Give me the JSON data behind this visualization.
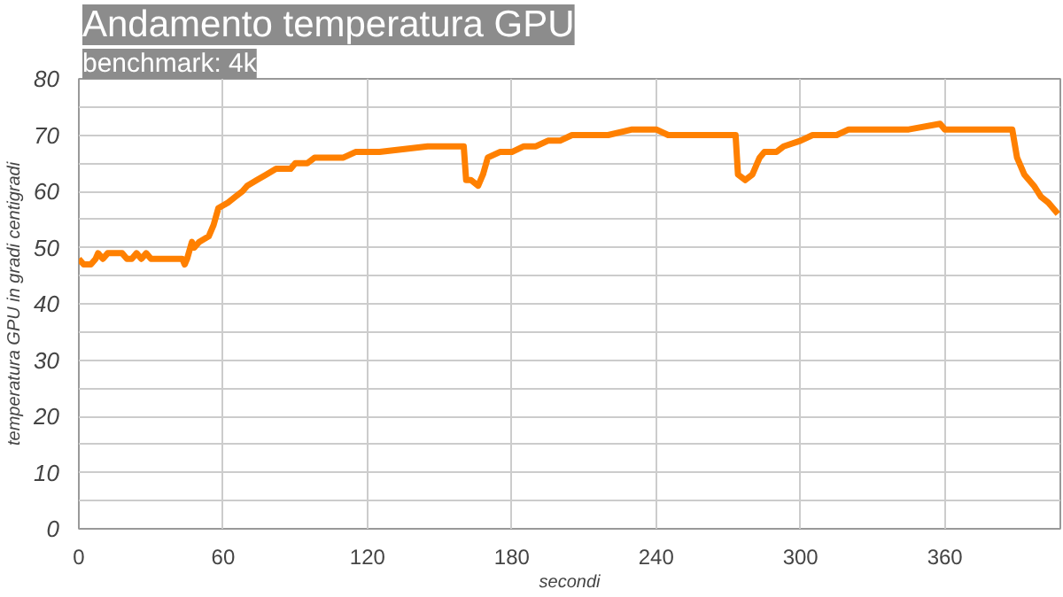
{
  "chart_data": {
    "type": "line",
    "title": "Andamento temperatura GPU",
    "subtitle": "benchmark: 4k",
    "xlabel": "secondi",
    "ylabel": "temperatura GPU in gradi centigradi",
    "xlim": [
      0,
      408
    ],
    "xticks": [
      0,
      60,
      120,
      180,
      240,
      300,
      360
    ],
    "ylim": [
      0,
      80
    ],
    "yticks": [
      0,
      {
        "value": 5,
        "label": null
      },
      10,
      {
        "value": 15,
        "label": null
      },
      20,
      {
        "value": 25,
        "label": null
      },
      30,
      {
        "value": 35,
        "label": null
      },
      40,
      {
        "value": 45,
        "label": null
      },
      50,
      {
        "value": 55,
        "label": null
      },
      60,
      {
        "value": 65,
        "label": null
      },
      70,
      {
        "value": 75,
        "label": null
      },
      80
    ],
    "grid": true,
    "marker": "none",
    "line_style": "solid",
    "series": [
      {
        "color": "#ff8000",
        "x": [
          0,
          2,
          5,
          7,
          8,
          10,
          12,
          18,
          20,
          22,
          24,
          26,
          28,
          30,
          43,
          44,
          45,
          47,
          48,
          50,
          54,
          56,
          58,
          62,
          65,
          68,
          70,
          74,
          78,
          82,
          88,
          90,
          95,
          98,
          110,
          115,
          125,
          145,
          155,
          160,
          161,
          163,
          166,
          168,
          170,
          175,
          180,
          185,
          190,
          195,
          200,
          205,
          220,
          230,
          240,
          245,
          255,
          273,
          274,
          277,
          280,
          283,
          285,
          290,
          293,
          300,
          305,
          315,
          320,
          330,
          345,
          358,
          360,
          370,
          380,
          388,
          390,
          393,
          397,
          400,
          403,
          407
        ],
        "values": [
          48,
          47,
          47,
          48,
          49,
          48,
          49,
          49,
          48,
          48,
          49,
          48,
          49,
          48,
          48,
          47,
          48,
          51,
          50,
          51,
          52,
          54,
          57,
          58,
          59,
          60,
          61,
          62,
          63,
          64,
          64,
          65,
          65,
          66,
          66,
          67,
          67,
          68,
          68,
          68,
          62,
          62,
          61,
          63,
          66,
          67,
          67,
          68,
          68,
          69,
          69,
          70,
          70,
          71,
          71,
          70,
          70,
          70,
          63,
          62,
          63,
          66,
          67,
          67,
          68,
          69,
          70,
          70,
          71,
          71,
          71,
          72,
          71,
          71,
          71,
          71,
          66,
          63,
          61,
          59,
          58,
          56
        ]
      }
    ]
  }
}
